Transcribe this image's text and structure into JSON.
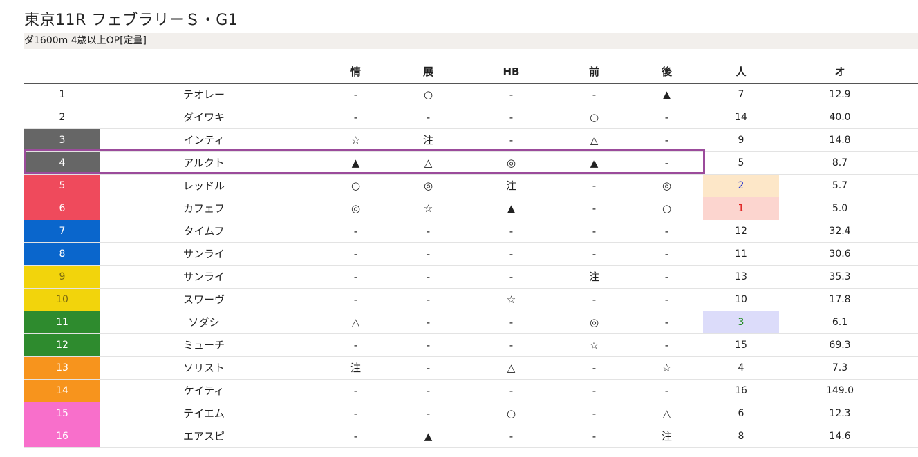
{
  "race": {
    "title": "東京11R フェブラリーＳ・G1",
    "subtitle": "ダ1600m  4歳以上OP[定量]"
  },
  "table": {
    "headers": [
      "",
      "",
      "情",
      "展",
      "HB",
      "前",
      "後",
      "人",
      "オ"
    ],
    "rows": [
      {
        "num": "1",
        "name": "テオレー",
        "m1": "-",
        "m2": "○",
        "m3": "-",
        "m4": "-",
        "m5": "▲",
        "pop": "7",
        "odds": "12.9",
        "num_bg": "#ffffff",
        "num_fg": "#222222",
        "pop_bg": "",
        "pop_fg": ""
      },
      {
        "num": "2",
        "name": "ダイワキ",
        "m1": "-",
        "m2": "-",
        "m3": "-",
        "m4": "○",
        "m5": "-",
        "pop": "14",
        "odds": "40.0",
        "num_bg": "#ffffff",
        "num_fg": "#222222",
        "pop_bg": "",
        "pop_fg": ""
      },
      {
        "num": "3",
        "name": "インティ",
        "m1": "☆",
        "m2": "注",
        "m3": "-",
        "m4": "△",
        "m5": "-",
        "pop": "9",
        "odds": "14.8",
        "num_bg": "#666666",
        "num_fg": "#ffffff",
        "pop_bg": "",
        "pop_fg": ""
      },
      {
        "num": "4",
        "name": "アルクト",
        "m1": "▲",
        "m2": "△",
        "m3": "◎",
        "m4": "▲",
        "m5": "-",
        "pop": "5",
        "odds": "8.7",
        "num_bg": "#666666",
        "num_fg": "#ffffff",
        "pop_bg": "",
        "pop_fg": ""
      },
      {
        "num": "5",
        "name": "レッドル",
        "m1": "○",
        "m2": "◎",
        "m3": "注",
        "m4": "-",
        "m5": "◎",
        "pop": "2",
        "odds": "5.7",
        "num_bg": "#ef4a5c",
        "num_fg": "#ffffff",
        "pop_bg": "#fde7c8",
        "pop_fg": "#2233cc"
      },
      {
        "num": "6",
        "name": "カフェフ",
        "m1": "◎",
        "m2": "☆",
        "m3": "▲",
        "m4": "-",
        "m5": "○",
        "pop": "1",
        "odds": "5.0",
        "num_bg": "#ef4a5c",
        "num_fg": "#ffffff",
        "pop_bg": "#fcd5cf",
        "pop_fg": "#dd1111"
      },
      {
        "num": "7",
        "name": "タイムフ",
        "m1": "-",
        "m2": "-",
        "m3": "-",
        "m4": "-",
        "m5": "-",
        "pop": "12",
        "odds": "32.4",
        "num_bg": "#0a66cc",
        "num_fg": "#ffffff",
        "pop_bg": "",
        "pop_fg": ""
      },
      {
        "num": "8",
        "name": "サンライ",
        "m1": "-",
        "m2": "-",
        "m3": "-",
        "m4": "-",
        "m5": "-",
        "pop": "11",
        "odds": "30.6",
        "num_bg": "#0a66cc",
        "num_fg": "#ffffff",
        "pop_bg": "",
        "pop_fg": ""
      },
      {
        "num": "9",
        "name": "サンライ",
        "m1": "-",
        "m2": "-",
        "m3": "-",
        "m4": "注",
        "m5": "-",
        "pop": "13",
        "odds": "35.3",
        "num_bg": "#f2d40c",
        "num_fg": "#7a6a10",
        "pop_bg": "",
        "pop_fg": ""
      },
      {
        "num": "10",
        "name": "スワーヴ",
        "m1": "-",
        "m2": "-",
        "m3": "☆",
        "m4": "-",
        "m5": "-",
        "pop": "10",
        "odds": "17.8",
        "num_bg": "#f2d40c",
        "num_fg": "#7a6a10",
        "pop_bg": "",
        "pop_fg": ""
      },
      {
        "num": "11",
        "name": "ソダシ",
        "m1": "△",
        "m2": "-",
        "m3": "-",
        "m4": "◎",
        "m5": "-",
        "pop": "3",
        "odds": "6.1",
        "num_bg": "#2e8b2e",
        "num_fg": "#ffffff",
        "pop_bg": "#dcdcfa",
        "pop_fg": "#1d8a1d"
      },
      {
        "num": "12",
        "name": "ミューチ",
        "m1": "-",
        "m2": "-",
        "m3": "-",
        "m4": "☆",
        "m5": "-",
        "pop": "15",
        "odds": "69.3",
        "num_bg": "#2e8b2e",
        "num_fg": "#ffffff",
        "pop_bg": "",
        "pop_fg": ""
      },
      {
        "num": "13",
        "name": "ソリスト",
        "m1": "注",
        "m2": "-",
        "m3": "△",
        "m4": "-",
        "m5": "☆",
        "pop": "4",
        "odds": "7.3",
        "num_bg": "#f7941d",
        "num_fg": "#ffffff",
        "pop_bg": "",
        "pop_fg": ""
      },
      {
        "num": "14",
        "name": "ケイティ",
        "m1": "-",
        "m2": "-",
        "m3": "-",
        "m4": "-",
        "m5": "-",
        "pop": "16",
        "odds": "149.0",
        "num_bg": "#f7941d",
        "num_fg": "#ffffff",
        "pop_bg": "",
        "pop_fg": ""
      },
      {
        "num": "15",
        "name": "テイエム",
        "m1": "-",
        "m2": "-",
        "m3": "○",
        "m4": "-",
        "m5": "△",
        "pop": "6",
        "odds": "12.3",
        "num_bg": "#f86fcb",
        "num_fg": "#ffffff",
        "pop_bg": "",
        "pop_fg": ""
      },
      {
        "num": "16",
        "name": "エアスピ",
        "m1": "-",
        "m2": "▲",
        "m3": "-",
        "m4": "-",
        "m5": "注",
        "pop": "8",
        "odds": "14.6",
        "num_bg": "#f86fcb",
        "num_fg": "#ffffff",
        "pop_bg": "",
        "pop_fg": ""
      }
    ]
  },
  "highlight": {
    "row_num": "4",
    "color": "#9b4b9b"
  }
}
